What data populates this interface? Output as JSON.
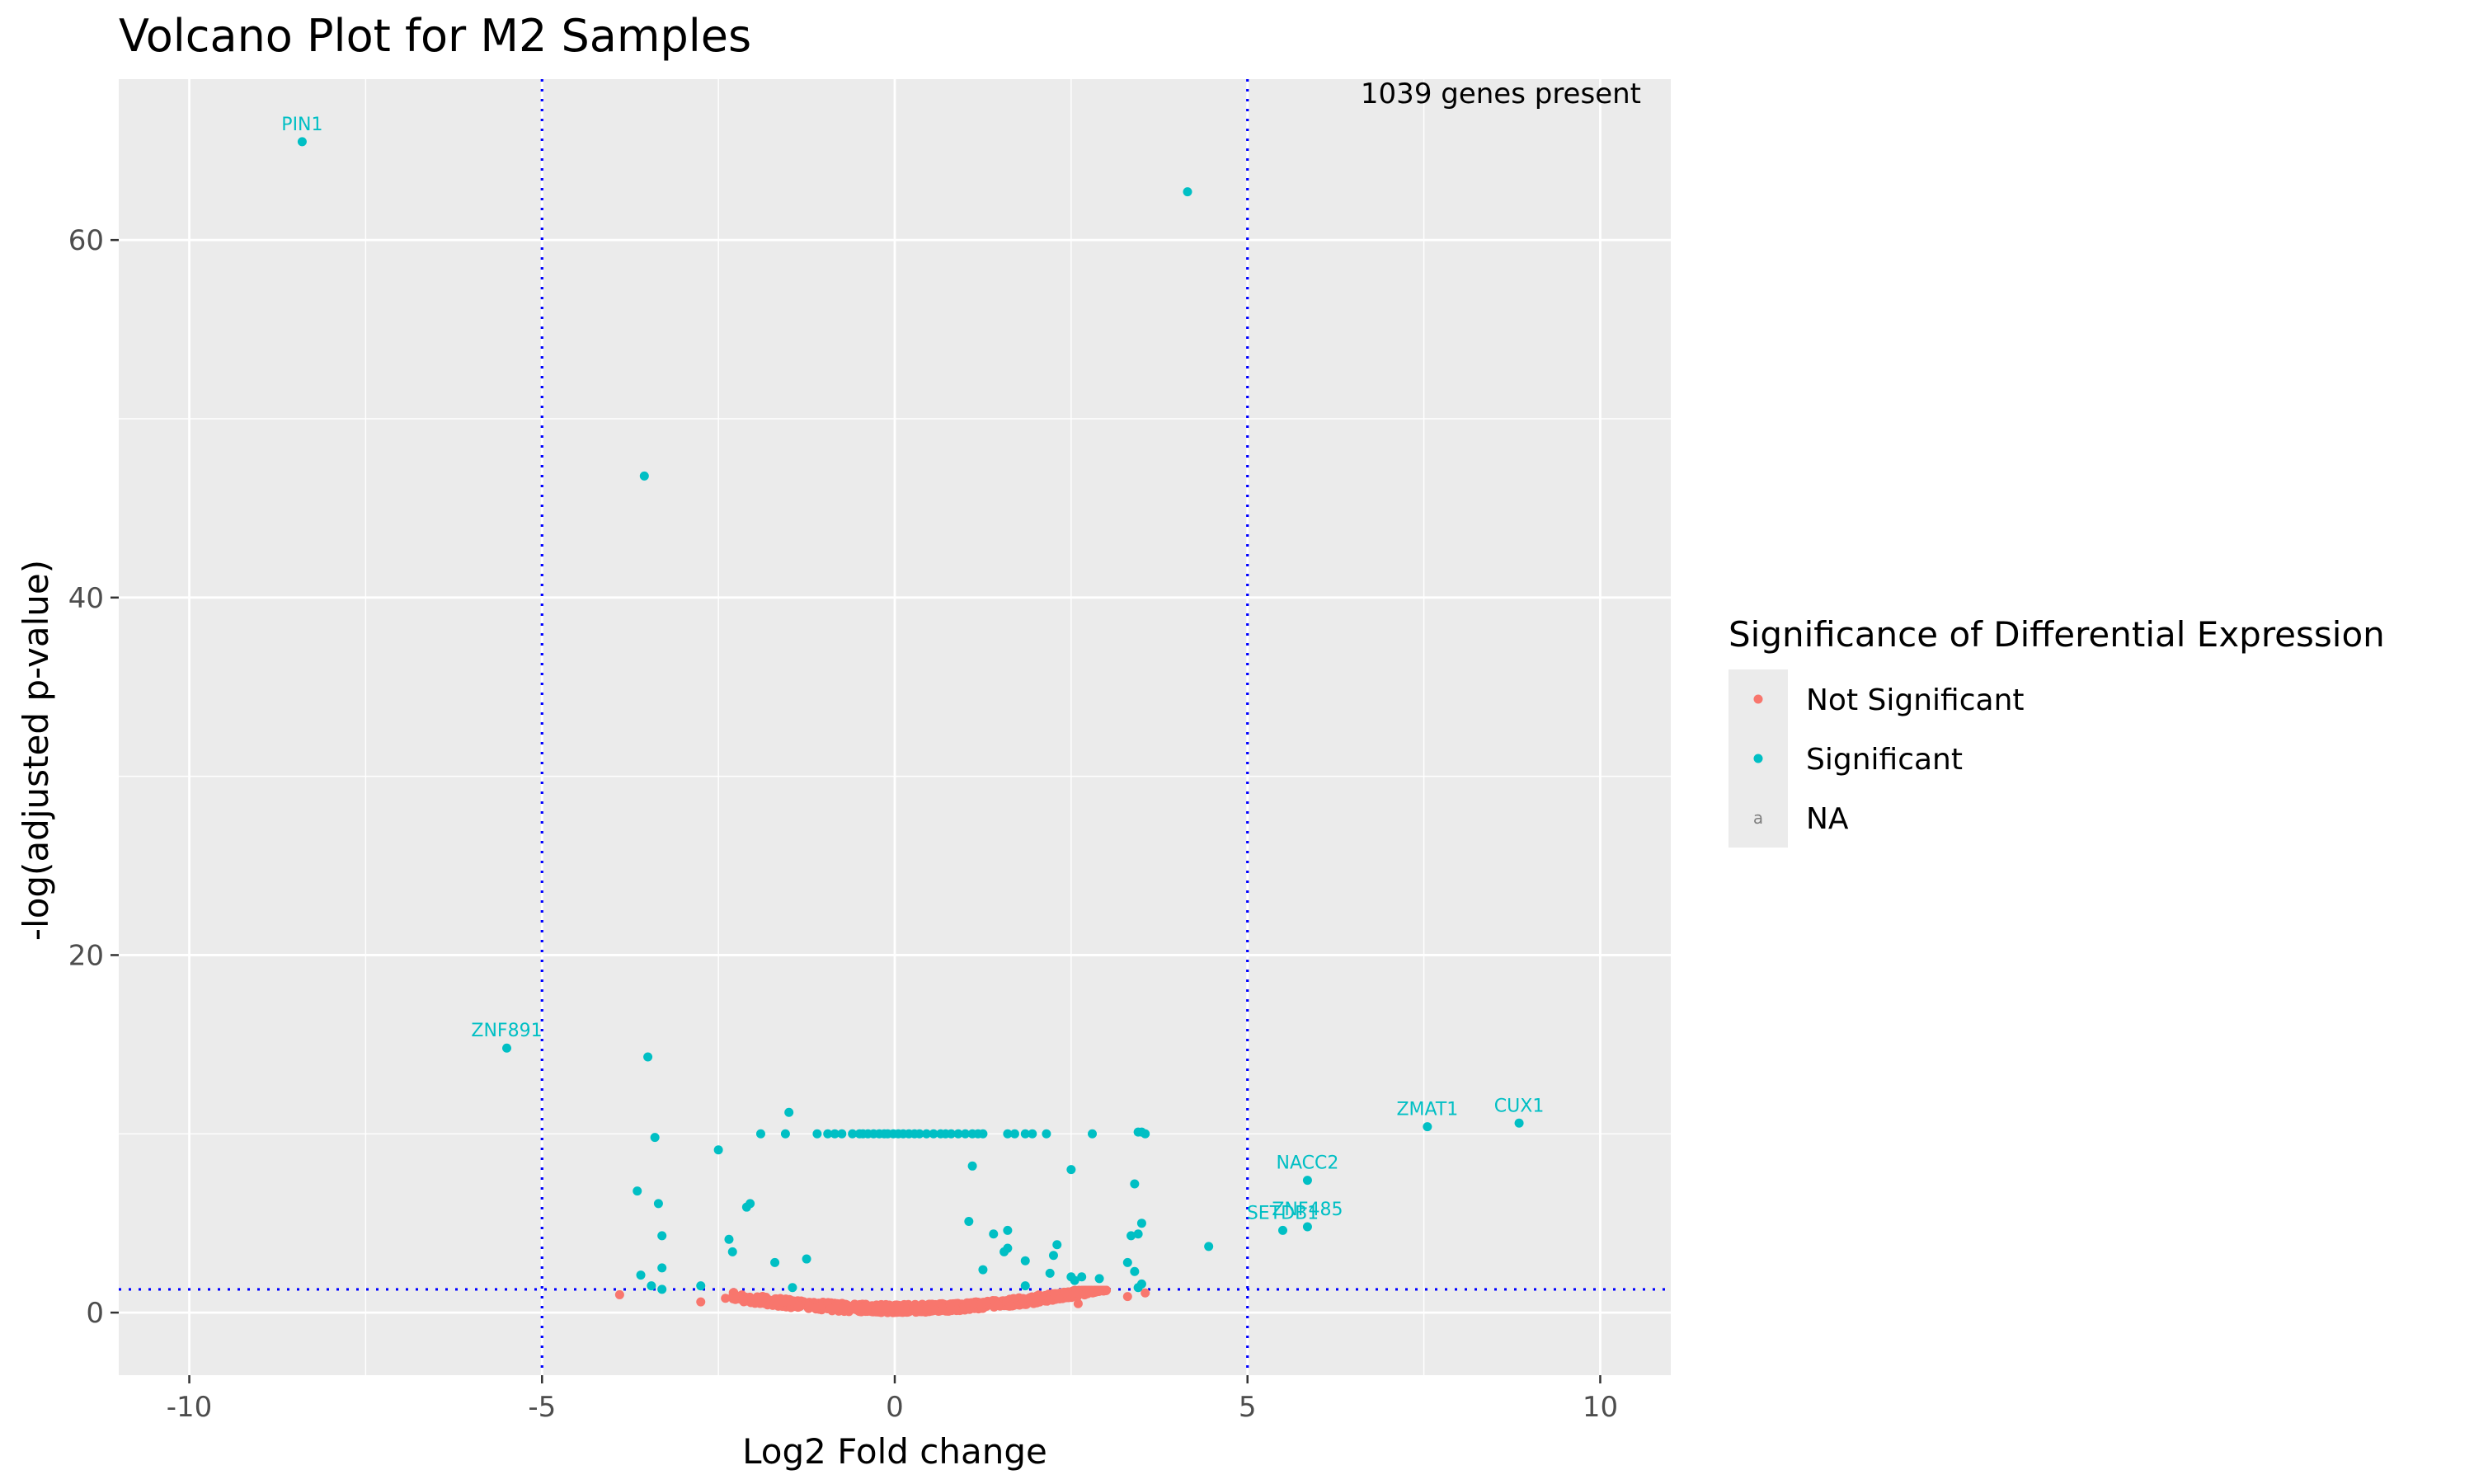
{
  "colors": {
    "panel_bg": "#ebebeb",
    "grid": "#ffffff",
    "not_significant": "#f8766d",
    "significant": "#00bfc4",
    "na": "#7f7f7f",
    "threshold": "#0000ff"
  },
  "chart_data": {
    "type": "scatter",
    "title": "Volcano Plot for M2 Samples",
    "xlabel": "Log2 Fold change",
    "ylabel": "-log(adjusted p-value)",
    "xlim": [
      -11,
      11
    ],
    "ylim": [
      -3.5,
      69
    ],
    "xticks": [
      -10,
      -5,
      0,
      5,
      10
    ],
    "yticks": [
      0,
      20,
      40,
      60
    ],
    "xtick_labels": [
      "-10",
      "-5",
      "0",
      "5",
      "10"
    ],
    "ytick_labels": [
      "0",
      "20",
      "40",
      "60"
    ],
    "grid": true,
    "legend_position": "right",
    "legend": {
      "title": "Significance of Differential Expression",
      "entries": [
        {
          "label": "Not Significant",
          "key": "not_significant",
          "glyph": "point"
        },
        {
          "label": "Significant",
          "key": "significant",
          "glyph": "point"
        },
        {
          "label": "NA",
          "key": "na",
          "glyph": "a"
        }
      ]
    },
    "thresholds": {
      "vertical": [
        -5,
        5
      ],
      "horizontal": [
        1.3
      ]
    },
    "annotation": "1039 genes present",
    "labeled_points": [
      {
        "label": "PIN1",
        "x": -8.4,
        "y": 65.5
      },
      {
        "label": "ZNF891",
        "x": -5.5,
        "y": 14.8
      },
      {
        "label": "ZMAT1",
        "x": 7.55,
        "y": 10.4
      },
      {
        "label": "CUX1",
        "x": 8.85,
        "y": 10.6
      },
      {
        "label": "NACC2",
        "x": 5.85,
        "y": 7.4
      },
      {
        "label": "SETDB1",
        "x": 5.5,
        "y": 4.6
      },
      {
        "label": "ZNF485",
        "x": 5.85,
        "y": 4.8
      }
    ],
    "series": [
      {
        "name": "Significant",
        "key": "significant",
        "points": [
          [
            4.15,
            62.7
          ],
          [
            -3.55,
            46.8
          ],
          [
            -3.5,
            14.3
          ],
          [
            -1.5,
            11.2
          ],
          [
            -3.4,
            9.8
          ],
          [
            -2.5,
            9.1
          ],
          [
            -1.9,
            10.0
          ],
          [
            -1.55,
            10.0
          ],
          [
            -1.1,
            10.0
          ],
          [
            -0.95,
            10.0
          ],
          [
            -0.85,
            10.0
          ],
          [
            -0.75,
            10.0
          ],
          [
            -0.6,
            10.0
          ],
          [
            -0.5,
            10.0
          ],
          [
            -0.45,
            10.0
          ],
          [
            -0.38,
            10.0
          ],
          [
            -0.3,
            10.0
          ],
          [
            -0.22,
            10.0
          ],
          [
            -0.15,
            10.0
          ],
          [
            -0.1,
            10.0
          ],
          [
            -0.02,
            10.0
          ],
          [
            0.05,
            10.0
          ],
          [
            0.12,
            10.0
          ],
          [
            0.2,
            10.0
          ],
          [
            0.28,
            10.0
          ],
          [
            0.35,
            10.0
          ],
          [
            0.45,
            10.0
          ],
          [
            0.55,
            10.0
          ],
          [
            0.65,
            10.0
          ],
          [
            0.72,
            10.0
          ],
          [
            0.8,
            10.0
          ],
          [
            0.9,
            10.0
          ],
          [
            1.0,
            10.0
          ],
          [
            1.1,
            10.0
          ],
          [
            1.18,
            10.0
          ],
          [
            1.25,
            10.0
          ],
          [
            1.6,
            10.0
          ],
          [
            1.7,
            10.0
          ],
          [
            1.85,
            10.0
          ],
          [
            1.95,
            10.0
          ],
          [
            2.15,
            10.0
          ],
          [
            2.8,
            10.0
          ],
          [
            3.45,
            10.1
          ],
          [
            3.55,
            10.0
          ],
          [
            3.5,
            10.1
          ],
          [
            1.1,
            8.2
          ],
          [
            2.5,
            8.0
          ],
          [
            3.4,
            7.2
          ],
          [
            -3.65,
            6.8
          ],
          [
            -3.35,
            6.1
          ],
          [
            -2.05,
            6.1
          ],
          [
            -2.1,
            5.9
          ],
          [
            1.05,
            5.1
          ],
          [
            3.5,
            5.0
          ],
          [
            1.6,
            4.6
          ],
          [
            1.4,
            4.4
          ],
          [
            3.35,
            4.3
          ],
          [
            3.45,
            4.4
          ],
          [
            -3.3,
            4.3
          ],
          [
            -2.35,
            4.1
          ],
          [
            2.3,
            3.8
          ],
          [
            4.45,
            3.7
          ],
          [
            1.6,
            3.6
          ],
          [
            1.55,
            3.4
          ],
          [
            -2.3,
            3.4
          ],
          [
            2.25,
            3.2
          ],
          [
            -1.25,
            3.0
          ],
          [
            1.85,
            2.9
          ],
          [
            -1.7,
            2.8
          ],
          [
            3.3,
            2.8
          ],
          [
            -3.3,
            2.5
          ],
          [
            1.25,
            2.4
          ],
          [
            3.4,
            2.3
          ],
          [
            2.2,
            2.2
          ],
          [
            -3.6,
            2.1
          ],
          [
            2.5,
            2.0
          ],
          [
            2.65,
            2.0
          ],
          [
            2.9,
            1.9
          ],
          [
            2.55,
            1.8
          ],
          [
            -3.45,
            1.5
          ],
          [
            -2.75,
            1.5
          ],
          [
            -1.45,
            1.4
          ],
          [
            1.85,
            1.5
          ],
          [
            3.5,
            1.6
          ],
          [
            3.45,
            1.4
          ],
          [
            -3.3,
            1.3
          ]
        ]
      }
    ]
  }
}
